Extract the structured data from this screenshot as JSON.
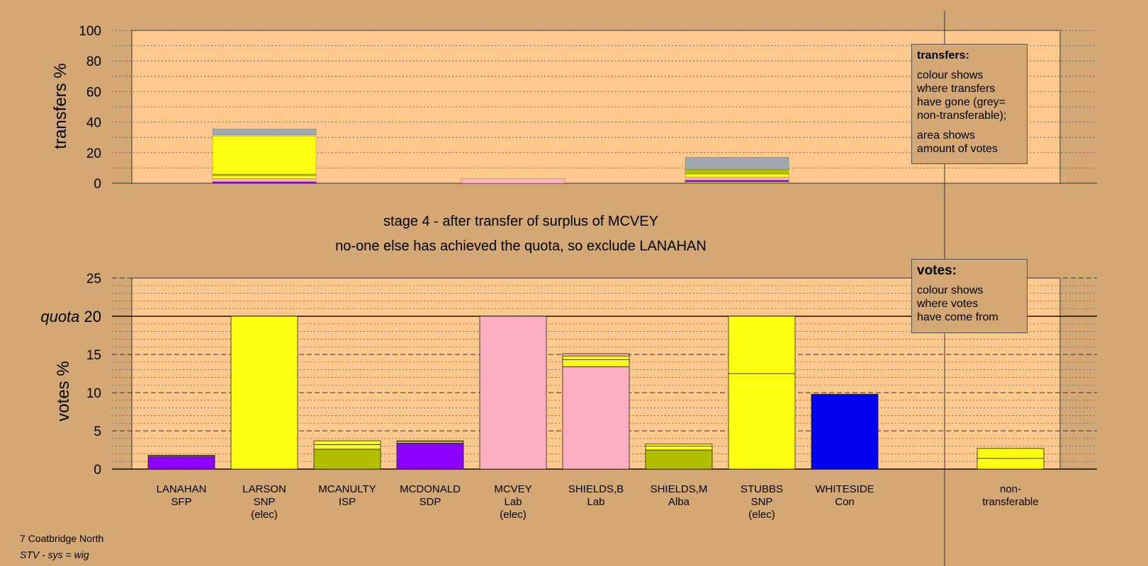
{
  "chart_data": [
    {
      "type": "bar",
      "stacked": true,
      "ylabel": "transfers %",
      "ylim": [
        0,
        100
      ],
      "yticks": [
        0,
        20,
        40,
        60,
        80,
        100
      ],
      "grid": true,
      "categories": [
        "LANAHAN",
        "LARSON",
        "MCANULTY",
        "MCDONALD",
        "MCVEY",
        "SHIELDS,B",
        "SHIELDS,M",
        "STUBBS",
        "WHITESIDE",
        "non-transferable"
      ],
      "bars": [
        {
          "category": "LARSON",
          "segments": [
            {
              "color": "#8B00FF",
              "value": 1
            },
            {
              "color": "#FFB0C0",
              "value": 2
            },
            {
              "color": "#FFFF10",
              "value": 2
            },
            {
              "color": "#B0C000",
              "value": 1
            },
            {
              "color": "#FFFF10",
              "value": 25
            },
            {
              "color": "#FFFFFF",
              "value": 0.5
            },
            {
              "color": "#A0A8B0",
              "value": 4
            }
          ]
        },
        {
          "category": "MCVEY",
          "segments": [
            {
              "color": "#FFB0C0",
              "value": 3
            }
          ]
        },
        {
          "category": "STUBBS",
          "segments": [
            {
              "color": "#B0C000",
              "value": 1
            },
            {
              "color": "#8B00FF",
              "value": 1
            },
            {
              "color": "#FFB0C0",
              "value": 2
            },
            {
              "color": "#FFFF10",
              "value": 2
            },
            {
              "color": "#B0C000",
              "value": 3
            },
            {
              "color": "#A0A8B0",
              "value": 8
            }
          ]
        }
      ]
    },
    {
      "type": "bar",
      "stacked": true,
      "ylabel": "votes %",
      "ylim": [
        0,
        25
      ],
      "yticks": [
        0,
        5,
        10,
        15,
        20,
        25
      ],
      "quota": 20,
      "quota_label": "quota",
      "grid": true,
      "categories": [
        {
          "name": "LANAHAN",
          "party": "SFP",
          "status": ""
        },
        {
          "name": "LARSON",
          "party": "SNP",
          "status": "(elec)"
        },
        {
          "name": "MCANULTY",
          "party": "ISP",
          "status": ""
        },
        {
          "name": "MCDONALD",
          "party": "SDP",
          "status": ""
        },
        {
          "name": "MCVEY",
          "party": "Lab",
          "status": "(elec)"
        },
        {
          "name": "SHIELDS,B",
          "party": "Lab",
          "status": ""
        },
        {
          "name": "SHIELDS,M",
          "party": "Alba",
          "status": ""
        },
        {
          "name": "STUBBS",
          "party": "SNP",
          "status": "(elec)"
        },
        {
          "name": "WHITESIDE",
          "party": "Con",
          "status": ""
        },
        {
          "name": "non-",
          "party": "transferable",
          "status": ""
        }
      ],
      "bars": [
        {
          "category": "LANAHAN",
          "segments": [
            {
              "color": "#8B00FF",
              "value": 1.6
            },
            {
              "color": "#FFFF10",
              "value": 0.1
            },
            {
              "color": "#FFB0C0",
              "value": 0.1
            }
          ]
        },
        {
          "category": "LARSON",
          "segments": [
            {
              "color": "#FFFF10",
              "value": 20
            }
          ]
        },
        {
          "category": "MCANULTY",
          "segments": [
            {
              "color": "#B0C000",
              "value": 2.6
            },
            {
              "color": "#FFFF10",
              "value": 0.6
            },
            {
              "color": "#FFFF10",
              "value": 0.5
            }
          ]
        },
        {
          "category": "MCDONALD",
          "segments": [
            {
              "color": "#8B00FF",
              "value": 3.4
            },
            {
              "color": "#FFFF10",
              "value": 0.2
            },
            {
              "color": "#FFB0C0",
              "value": 0.1
            }
          ]
        },
        {
          "category": "MCVEY",
          "segments": [
            {
              "color": "#FFB0C0",
              "value": 20
            }
          ]
        },
        {
          "category": "SHIELDS,B",
          "segments": [
            {
              "color": "#FFB0C0",
              "value": 13.4
            },
            {
              "color": "#FFFF10",
              "value": 0.9
            },
            {
              "color": "#FFFF10",
              "value": 0.5
            },
            {
              "color": "#FFB0C0",
              "value": 0.3
            }
          ]
        },
        {
          "category": "SHIELDS,M",
          "segments": [
            {
              "color": "#B0C000",
              "value": 2.5
            },
            {
              "color": "#FFFF10",
              "value": 0.5
            },
            {
              "color": "#FFFF10",
              "value": 0.3
            }
          ]
        },
        {
          "category": "STUBBS",
          "segments": [
            {
              "color": "#FFFF10",
              "value": 12.5
            },
            {
              "color": "#FFFF10",
              "value": 7.5
            }
          ]
        },
        {
          "category": "WHITESIDE",
          "segments": [
            {
              "color": "#0000F0",
              "value": 9.8
            }
          ]
        },
        {
          "category": "",
          "segments": []
        },
        {
          "category": "non-transferable",
          "segments": [
            {
              "color": "#FFFF10",
              "value": 1.4
            },
            {
              "color": "#FFFF10",
              "value": 1.3
            }
          ]
        }
      ]
    }
  ],
  "stage_title": "stage 4 - after transfer of surplus of MCVEY",
  "stage_subtitle": "no-one else has achieved the quota, so exclude LANAHAN",
  "transfers_legend": {
    "heading": "transfers:",
    "lines": [
      "colour shows",
      "where transfers",
      "have gone (grey=",
      "non-transferable);"
    ],
    "lines2": [
      "area shows",
      "amount of votes"
    ]
  },
  "votes_legend": {
    "heading": "votes:",
    "lines": [
      "colour shows",
      "where votes",
      "have come from"
    ]
  },
  "footer": {
    "constituency": "7 Coatbridge North",
    "system": "STV - sys = wig"
  },
  "colors": {
    "background": "#D4A874",
    "plot_bg": "#FFC88C",
    "SFP": "#8B00FF",
    "SNP": "#FFFF10",
    "ISP": "#B0C000",
    "SDP": "#8B00FF",
    "Lab": "#FFB0C0",
    "Alba": "#B0C000",
    "Con": "#0000F0",
    "non_transferable": "#A0A8B0"
  }
}
